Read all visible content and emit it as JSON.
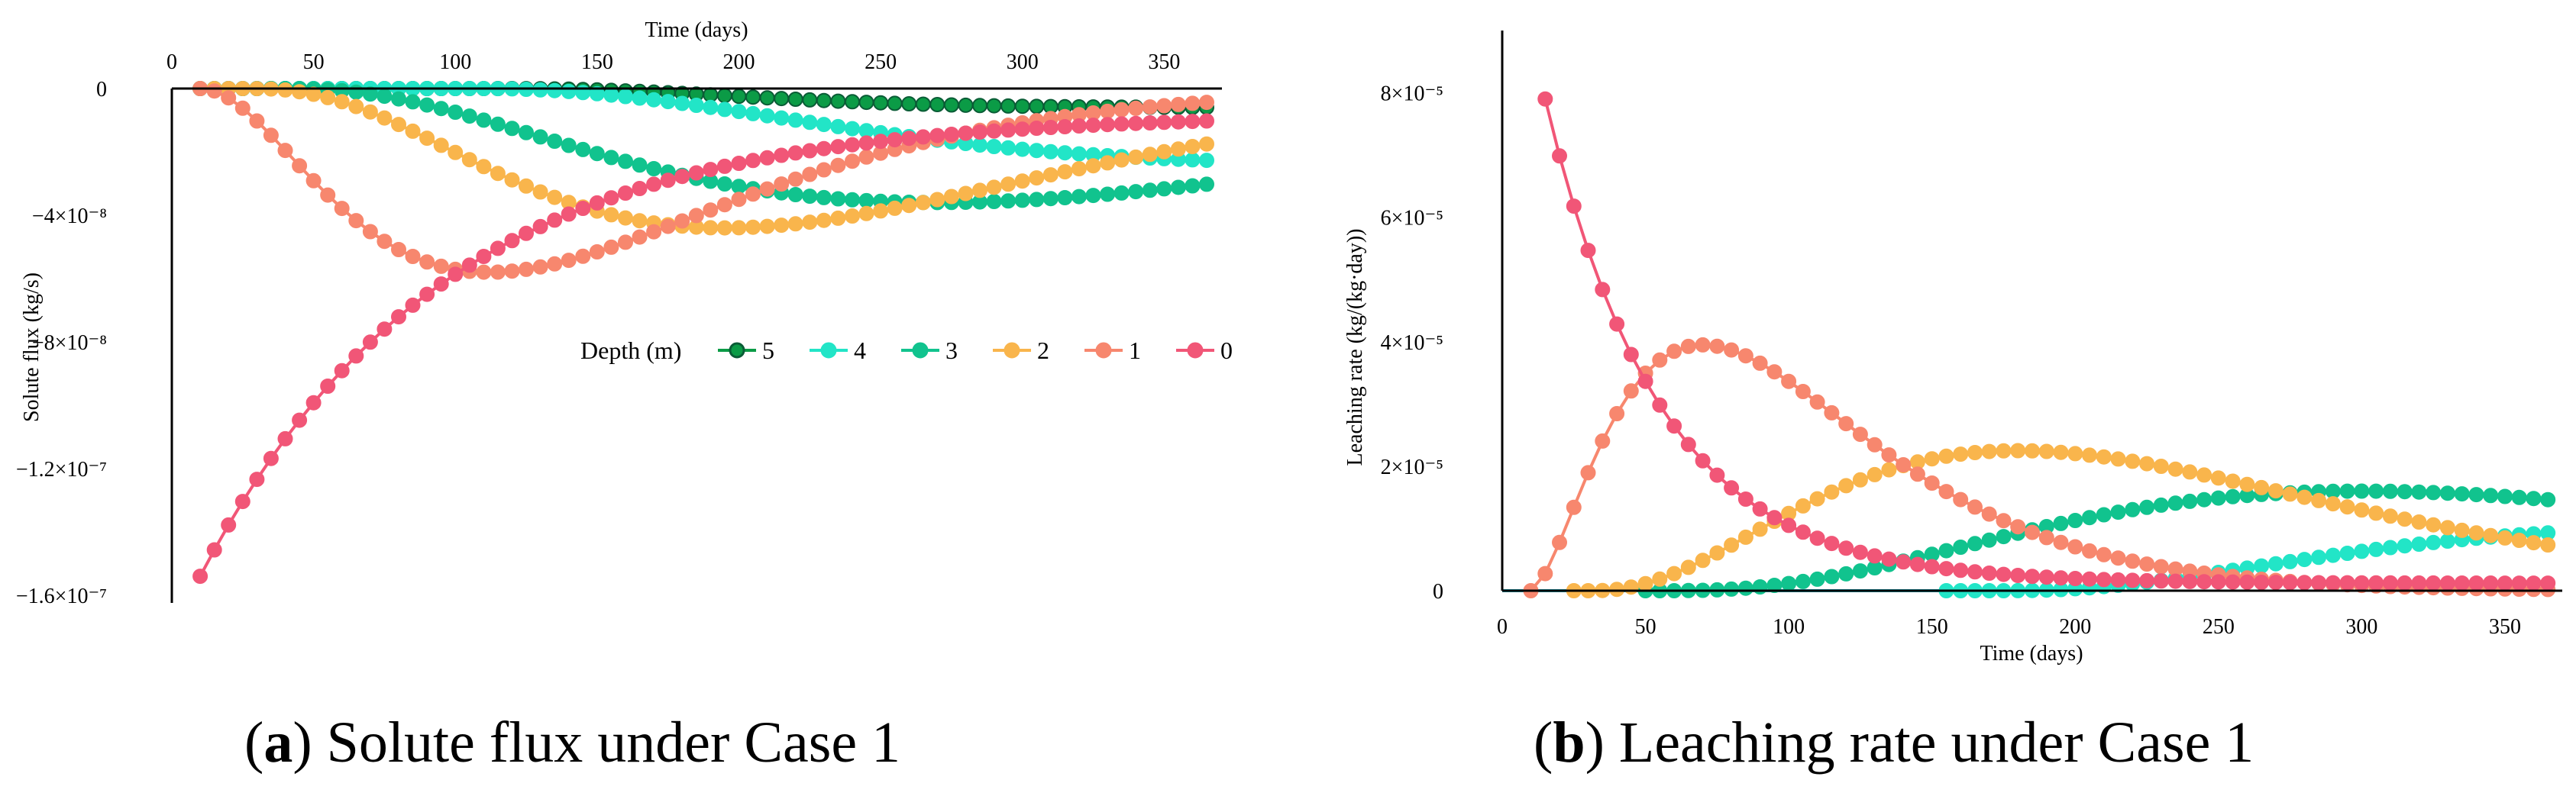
{
  "chart_data": [
    {
      "panel": "a",
      "type": "line",
      "caption_letter": "a",
      "caption_text": ") Solute flux under Case 1",
      "xlabel": "Time (days)",
      "ylabel": "Solute flux (kg/s)",
      "xlim": [
        0,
        365
      ],
      "ylim": [
        -1.6e-07,
        0
      ],
      "x_ticks": [
        {
          "value": 0,
          "label": "0"
        },
        {
          "value": 50,
          "label": "50"
        },
        {
          "value": 100,
          "label": "100"
        },
        {
          "value": 150,
          "label": "150"
        },
        {
          "value": 200,
          "label": "200"
        },
        {
          "value": 250,
          "label": "250"
        },
        {
          "value": 300,
          "label": "300"
        },
        {
          "value": 350,
          "label": "350"
        }
      ],
      "y_ticks": [
        {
          "value": 0,
          "label": "0"
        },
        {
          "value": -4e-08,
          "label": "−4×10⁻⁸"
        },
        {
          "value": -8e-08,
          "label": "−8×10⁻⁸"
        },
        {
          "value": -1.2e-07,
          "label": "−1.2×10⁻⁷"
        },
        {
          "value": -1.6e-07,
          "label": "−1.6×10⁻⁷"
        }
      ],
      "legend_title": "Depth (m)",
      "series": [
        {
          "name": "5",
          "color": "#0b9b46",
          "edge": "#0a5c36",
          "x_start": 10,
          "x_end": 365,
          "shape": "sigmoid",
          "delay": 120,
          "peak": -6e-09,
          "tau": 110
        },
        {
          "name": "4",
          "color": "#22e5c7",
          "edge": "#22e5c7",
          "x_start": 10,
          "x_end": 365,
          "shape": "sigmoid",
          "delay": 110,
          "peak": -2.4e-08,
          "tau": 150
        },
        {
          "name": "3",
          "color": "#11c38e",
          "edge": "#11c38e",
          "x_start": 10,
          "x_end": 365,
          "shape": "gamma",
          "onset": 40,
          "tpeak": 270,
          "peak": -3.6e-08,
          "k": 2.6
        },
        {
          "name": "2",
          "color": "#f9b54c",
          "edge": "#f9b54c",
          "x_start": 10,
          "x_end": 365,
          "shape": "gamma",
          "onset": 25,
          "tpeak": 195,
          "peak": -4.4e-08,
          "k": 3.0
        },
        {
          "name": "1",
          "color": "#f7876e",
          "edge": "#f7876e",
          "x_start": 10,
          "x_end": 365,
          "shape": "gamma",
          "onset": 10,
          "tpeak": 112,
          "peak": -5.8e-08,
          "k": 2.1
        },
        {
          "name": "0",
          "color": "#f15677",
          "edge": "#f15677",
          "x_start": 10,
          "x_end": 365,
          "shape": "decay",
          "start_value": -1.54e-07,
          "end_value": -8e-09,
          "decay": 85
        }
      ]
    },
    {
      "panel": "b",
      "type": "line",
      "caption_letter": "b",
      "caption_text": ") Leaching rate under Case 1",
      "xlabel": "Time (days)",
      "ylabel": "Leaching rate (kg/(kg·day))",
      "xlim": [
        0,
        370
      ],
      "ylim": [
        0,
        9e-05
      ],
      "x_ticks": [
        {
          "value": 0,
          "label": "0"
        },
        {
          "value": 50,
          "label": "50"
        },
        {
          "value": 100,
          "label": "100"
        },
        {
          "value": 150,
          "label": "150"
        },
        {
          "value": 200,
          "label": "200"
        },
        {
          "value": 250,
          "label": "250"
        },
        {
          "value": 300,
          "label": "300"
        },
        {
          "value": 350,
          "label": "350"
        }
      ],
      "y_ticks": [
        {
          "value": 0,
          "label": "0"
        },
        {
          "value": 2e-05,
          "label": "2×10⁻⁵"
        },
        {
          "value": 4e-05,
          "label": "4×10⁻⁵"
        },
        {
          "value": 6e-05,
          "label": "6×10⁻⁵"
        },
        {
          "value": 8e-05,
          "label": "8×10⁻⁵"
        }
      ],
      "series": [
        {
          "name": "5",
          "color": "#1fb3c9",
          "edge": "#1fb3c9",
          "markers": false,
          "x_start": 0,
          "x_end": 155,
          "shape": "flat",
          "value": 0
        },
        {
          "name": "4",
          "color": "#22e5c7",
          "edge": "#22e5c7",
          "x_start": 155,
          "x_end": 365,
          "shape": "gamma",
          "onset": 175,
          "tpeak": 420,
          "peak": 1e-05,
          "k": 2.5
        },
        {
          "name": "3",
          "color": "#11c38e",
          "edge": "#11c38e",
          "x_start": 50,
          "x_end": 365,
          "shape": "gamma",
          "onset": 55,
          "tpeak": 300,
          "peak": 1.6e-05,
          "k": 3.0
        },
        {
          "name": "2",
          "color": "#f9b54c",
          "edge": "#f9b54c",
          "x_start": 25,
          "x_end": 365,
          "shape": "gamma",
          "onset": 30,
          "tpeak": 180,
          "peak": 2.25e-05,
          "k": 2.6
        },
        {
          "name": "1",
          "color": "#f7876e",
          "edge": "#f7876e",
          "x_start": 10,
          "x_end": 365,
          "shape": "gamma",
          "onset": 10,
          "tpeak": 70,
          "peak": 3.95e-05,
          "k": 1.7
        },
        {
          "name": "0",
          "color": "#f15677",
          "edge": "#f15677",
          "x_start": 15,
          "x_end": 365,
          "shape": "decay",
          "start_value": 7.9e-05,
          "end_value": 1.2e-06,
          "decay": 40
        }
      ]
    }
  ]
}
